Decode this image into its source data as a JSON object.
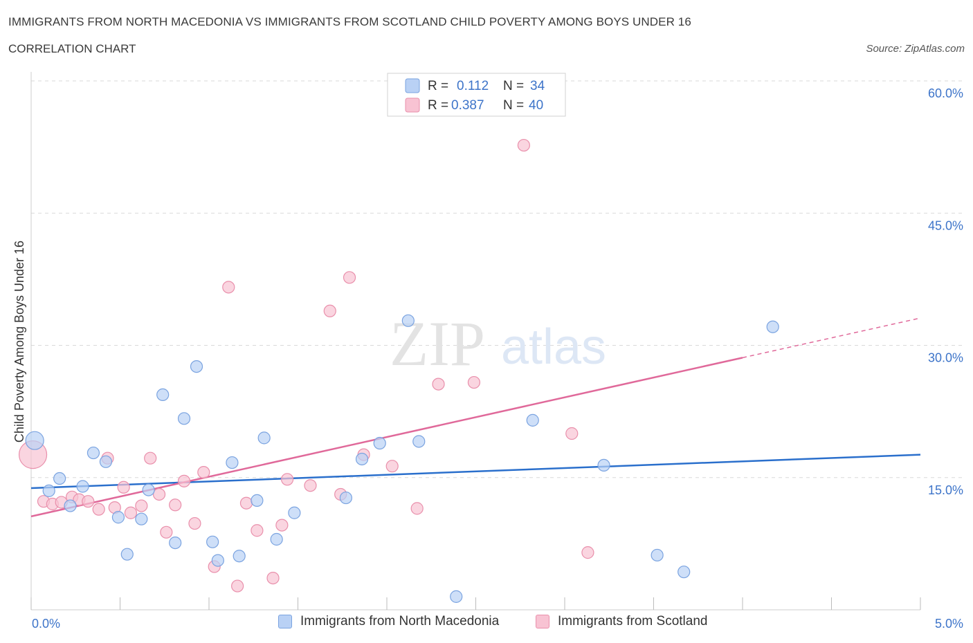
{
  "header": {
    "title": "IMMIGRANTS FROM NORTH MACEDONIA VS IMMIGRANTS FROM SCOTLAND CHILD POVERTY AMONG BOYS UNDER 16",
    "subtitle": "CORRELATION CHART",
    "source": "Source: ZipAtlas.com"
  },
  "watermark": {
    "zip": "ZIP",
    "atlas": "atlas"
  },
  "colors": {
    "blue_fill": "#b9d1f5",
    "blue_stroke": "#7aa3e0",
    "blue_line": "#2a6fcc",
    "pink_fill": "#f8c3d3",
    "pink_stroke": "#e98fab",
    "pink_line": "#e0699a",
    "axis_label": "#3d74c9",
    "grid": "#d9d9d9"
  },
  "legend": {
    "rows": [
      {
        "r_label": "R =",
        "r_value": "0.112",
        "n_label": "N =",
        "n_value": "34",
        "series": "blue"
      },
      {
        "r_label": "R =",
        "r_value": "0.387",
        "n_label": "N =",
        "n_value": "40",
        "series": "pink"
      }
    ]
  },
  "bottom_legend": [
    {
      "label": "Immigrants from North Macedonia",
      "series": "blue"
    },
    {
      "label": "Immigrants from Scotland",
      "series": "pink"
    }
  ],
  "chart_data": {
    "type": "scatter",
    "ylabel": "Child Poverty Among Boys Under 16",
    "xlabel": "",
    "xlim": [
      0,
      5
    ],
    "ylim": [
      0,
      60
    ],
    "x_tick_labels": [
      {
        "value": 0,
        "label": "0.0%"
      },
      {
        "value": 5,
        "label": "5.0%"
      }
    ],
    "y_tick_labels": [
      {
        "value": 15,
        "label": "15.0%"
      },
      {
        "value": 30,
        "label": "30.0%"
      },
      {
        "value": 45,
        "label": "45.0%"
      },
      {
        "value": 60,
        "label": "60.0%"
      }
    ],
    "legend_position": "top-center",
    "grid": true,
    "series": [
      {
        "name": "Immigrants from North Macedonia",
        "color": "#7aa3e0",
        "trend": {
          "x": [
            0,
            5
          ],
          "y": [
            13.8,
            17.6
          ]
        },
        "points": [
          {
            "x": 0.02,
            "y": 19.2,
            "big": true
          },
          {
            "x": 0.1,
            "y": 13.5
          },
          {
            "x": 0.16,
            "y": 14.9
          },
          {
            "x": 0.22,
            "y": 11.8
          },
          {
            "x": 0.29,
            "y": 14.0
          },
          {
            "x": 0.35,
            "y": 17.8
          },
          {
            "x": 0.42,
            "y": 16.8
          },
          {
            "x": 0.49,
            "y": 10.5
          },
          {
            "x": 0.54,
            "y": 6.3
          },
          {
            "x": 0.62,
            "y": 10.3
          },
          {
            "x": 0.66,
            "y": 13.6
          },
          {
            "x": 0.74,
            "y": 24.4
          },
          {
            "x": 0.81,
            "y": 7.6
          },
          {
            "x": 0.86,
            "y": 21.7
          },
          {
            "x": 0.93,
            "y": 27.6
          },
          {
            "x": 1.02,
            "y": 7.7
          },
          {
            "x": 1.05,
            "y": 5.6
          },
          {
            "x": 1.13,
            "y": 16.7
          },
          {
            "x": 1.17,
            "y": 6.1
          },
          {
            "x": 1.27,
            "y": 12.4
          },
          {
            "x": 1.31,
            "y": 19.5
          },
          {
            "x": 1.38,
            "y": 8.0
          },
          {
            "x": 1.48,
            "y": 11.0
          },
          {
            "x": 1.77,
            "y": 12.7
          },
          {
            "x": 1.86,
            "y": 17.1
          },
          {
            "x": 1.96,
            "y": 18.9
          },
          {
            "x": 2.12,
            "y": 32.8
          },
          {
            "x": 2.18,
            "y": 19.1
          },
          {
            "x": 2.39,
            "y": 1.5
          },
          {
            "x": 2.82,
            "y": 21.5
          },
          {
            "x": 3.22,
            "y": 16.4
          },
          {
            "x": 3.52,
            "y": 6.2
          },
          {
            "x": 3.67,
            "y": 4.3
          },
          {
            "x": 4.17,
            "y": 32.1
          }
        ]
      },
      {
        "name": "Immigrants from Scotland",
        "color": "#e98fab",
        "trend": {
          "x": [
            0,
            4.0
          ],
          "y": [
            10.6,
            28.6
          ],
          "dashed_to": {
            "x": 5,
            "y": 33.1
          }
        },
        "points": [
          {
            "x": 0.01,
            "y": 17.6,
            "big": true
          },
          {
            "x": 0.07,
            "y": 12.3
          },
          {
            "x": 0.12,
            "y": 12.0
          },
          {
            "x": 0.17,
            "y": 12.2
          },
          {
            "x": 0.23,
            "y": 12.8
          },
          {
            "x": 0.27,
            "y": 12.5
          },
          {
            "x": 0.32,
            "y": 12.3
          },
          {
            "x": 0.38,
            "y": 11.4
          },
          {
            "x": 0.43,
            "y": 17.2
          },
          {
            "x": 0.47,
            "y": 11.6
          },
          {
            "x": 0.52,
            "y": 13.9
          },
          {
            "x": 0.56,
            "y": 11.0
          },
          {
            "x": 0.62,
            "y": 11.8
          },
          {
            "x": 0.67,
            "y": 17.2
          },
          {
            "x": 0.72,
            "y": 13.1
          },
          {
            "x": 0.76,
            "y": 8.8
          },
          {
            "x": 0.81,
            "y": 11.9
          },
          {
            "x": 0.86,
            "y": 14.6
          },
          {
            "x": 0.92,
            "y": 9.8
          },
          {
            "x": 0.97,
            "y": 15.6
          },
          {
            "x": 1.03,
            "y": 4.9
          },
          {
            "x": 1.11,
            "y": 36.6
          },
          {
            "x": 1.16,
            "y": 2.7
          },
          {
            "x": 1.21,
            "y": 12.1
          },
          {
            "x": 1.27,
            "y": 9.0
          },
          {
            "x": 1.36,
            "y": 3.6
          },
          {
            "x": 1.41,
            "y": 9.6
          },
          {
            "x": 1.44,
            "y": 14.8
          },
          {
            "x": 1.57,
            "y": 14.1
          },
          {
            "x": 1.68,
            "y": 33.9
          },
          {
            "x": 1.74,
            "y": 13.1
          },
          {
            "x": 1.79,
            "y": 37.7
          },
          {
            "x": 1.87,
            "y": 17.6
          },
          {
            "x": 2.03,
            "y": 16.3
          },
          {
            "x": 2.17,
            "y": 11.5
          },
          {
            "x": 2.29,
            "y": 25.6
          },
          {
            "x": 2.49,
            "y": 25.8
          },
          {
            "x": 2.77,
            "y": 52.7
          },
          {
            "x": 3.04,
            "y": 20.0
          },
          {
            "x": 3.13,
            "y": 6.5
          }
        ]
      }
    ]
  }
}
